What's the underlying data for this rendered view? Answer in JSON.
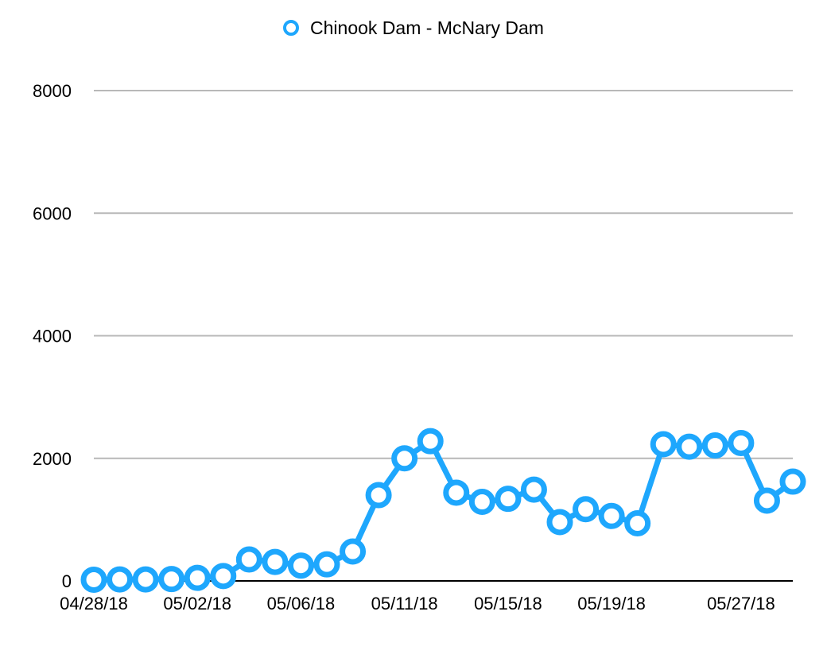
{
  "chart_data": {
    "type": "line",
    "title": "",
    "xlabel": "",
    "ylabel": "",
    "ylim": [
      0,
      8000
    ],
    "yticks": [
      "0",
      "2000",
      "4000",
      "6000",
      "8000"
    ],
    "xtick_labels": [
      "04/28/18",
      "05/02/18",
      "05/06/18",
      "05/11/18",
      "05/15/18",
      "05/19/18",
      "05/27/18"
    ],
    "legend_position": "top-center",
    "grid": true,
    "color": "#1ea7fd",
    "x": [
      "04/28/18",
      "04/29/18",
      "04/30/18",
      "05/01/18",
      "05/02/18",
      "05/03/18",
      "05/04/18",
      "05/05/18",
      "05/06/18",
      "05/07/18",
      "05/08/18",
      "05/09/18",
      "05/11/18",
      "05/12/18",
      "05/13/18",
      "05/14/18",
      "05/15/18",
      "05/16/18",
      "05/17/18",
      "05/18/18",
      "05/19/18",
      "05/20/18",
      "05/21/18",
      "05/22/18",
      "05/23/18",
      "05/27/18",
      "05/28/18",
      "05/29/18"
    ],
    "series": [
      {
        "name": "Chinook Dam - McNary Dam",
        "values": [
          20,
          25,
          25,
          30,
          50,
          80,
          350,
          310,
          250,
          270,
          480,
          1400,
          2000,
          2280,
          1440,
          1290,
          1340,
          1490,
          960,
          1170,
          1060,
          940,
          2230,
          2190,
          2210,
          2250,
          1310,
          1620
        ]
      }
    ]
  }
}
